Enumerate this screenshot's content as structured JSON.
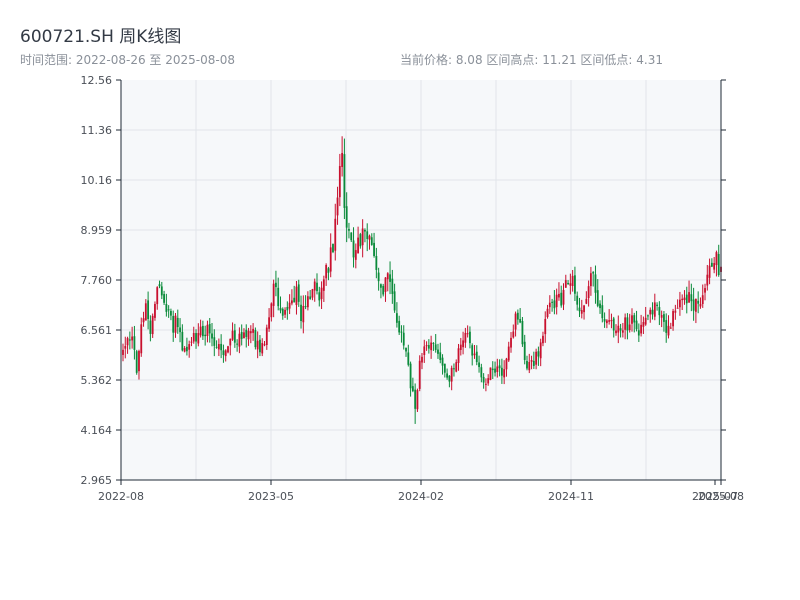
{
  "chart_data": {
    "type": "candlestick",
    "title": "600721.SH 周K线图",
    "subtitle_left": "时间范围: 2022-08-26 至 2025-08-08",
    "subtitle_right": "当前价格: 8.08   区间高点: 11.21   区间低点: 4.31",
    "up_color": "#c8102e",
    "down_color": "#0a8a3a",
    "y_ticks": [
      "2.965",
      "4.164",
      "5.362",
      "6.561",
      "7.760",
      "8.959",
      "10.16",
      "11.36",
      "12.56"
    ],
    "ylim": [
      2.965,
      12.56
    ],
    "x_ticks": [
      "2022-08",
      "2023-05",
      "2024-02",
      "2024-11",
      "2025-07",
      "2025-08"
    ],
    "grid": true,
    "anchors": [
      [
        0,
        6.2
      ],
      [
        4,
        6.25
      ],
      [
        6,
        5.6
      ],
      [
        8,
        6.8
      ],
      [
        10,
        7.0
      ],
      [
        12,
        6.6
      ],
      [
        14,
        7.4
      ],
      [
        16,
        7.6
      ],
      [
        18,
        7.1
      ],
      [
        20,
        6.9
      ],
      [
        22,
        6.7
      ],
      [
        24,
        6.8
      ],
      [
        26,
        6.2
      ],
      [
        28,
        6.1
      ],
      [
        30,
        6.3
      ],
      [
        32,
        6.4
      ],
      [
        34,
        6.5
      ],
      [
        36,
        6.6
      ],
      [
        38,
        6.4
      ],
      [
        40,
        6.2
      ],
      [
        42,
        6.1
      ],
      [
        44,
        6.1
      ],
      [
        46,
        6.3
      ],
      [
        48,
        6.5
      ],
      [
        50,
        6.4
      ],
      [
        52,
        6.3
      ],
      [
        54,
        6.4
      ],
      [
        56,
        6.6
      ],
      [
        58,
        6.3
      ],
      [
        60,
        6.2
      ],
      [
        62,
        6.4
      ],
      [
        64,
        6.9
      ],
      [
        66,
        7.6
      ],
      [
        68,
        7.3
      ],
      [
        70,
        7.1
      ],
      [
        72,
        7.0
      ],
      [
        74,
        7.2
      ],
      [
        76,
        7.4
      ],
      [
        78,
        6.8
      ],
      [
        80,
        7.2
      ],
      [
        82,
        7.5
      ],
      [
        84,
        7.6
      ],
      [
        86,
        7.3
      ],
      [
        88,
        7.7
      ],
      [
        90,
        8.1
      ],
      [
        92,
        8.5
      ],
      [
        94,
        9.8
      ],
      [
        95,
        10.2
      ],
      [
        96,
        10.5
      ],
      [
        97,
        9.6
      ],
      [
        98,
        9.0
      ],
      [
        100,
        8.6
      ],
      [
        102,
        8.4
      ],
      [
        104,
        8.7
      ],
      [
        106,
        9.0
      ],
      [
        108,
        8.7
      ],
      [
        110,
        8.1
      ],
      [
        112,
        7.8
      ],
      [
        114,
        7.6
      ],
      [
        116,
        7.9
      ],
      [
        118,
        7.3
      ],
      [
        120,
        6.8
      ],
      [
        122,
        6.5
      ],
      [
        124,
        5.9
      ],
      [
        126,
        5.3
      ],
      [
        128,
        4.8
      ],
      [
        130,
        5.7
      ],
      [
        132,
        6.0
      ],
      [
        134,
        6.3
      ],
      [
        136,
        6.4
      ],
      [
        138,
        6.0
      ],
      [
        140,
        5.6
      ],
      [
        142,
        5.3
      ],
      [
        144,
        5.6
      ],
      [
        146,
        5.9
      ],
      [
        148,
        6.1
      ],
      [
        150,
        6.4
      ],
      [
        152,
        6.3
      ],
      [
        154,
        5.9
      ],
      [
        156,
        5.6
      ],
      [
        158,
        5.3
      ],
      [
        160,
        5.5
      ],
      [
        162,
        5.6
      ],
      [
        164,
        5.7
      ],
      [
        166,
        5.4
      ],
      [
        168,
        5.8
      ],
      [
        170,
        6.2
      ],
      [
        172,
        6.8
      ],
      [
        174,
        6.6
      ],
      [
        176,
        5.9
      ],
      [
        178,
        5.7
      ],
      [
        180,
        5.8
      ],
      [
        182,
        6.0
      ],
      [
        184,
        6.4
      ],
      [
        186,
        7.0
      ],
      [
        188,
        7.3
      ],
      [
        189,
        6.9
      ],
      [
        190,
        7.6
      ],
      [
        192,
        7.2
      ],
      [
        194,
        7.6
      ],
      [
        196,
        7.9
      ],
      [
        198,
        7.4
      ],
      [
        200,
        6.9
      ],
      [
        202,
        7.3
      ],
      [
        204,
        7.6
      ],
      [
        206,
        7.8
      ],
      [
        208,
        7.2
      ],
      [
        210,
        6.8
      ],
      [
        212,
        6.6
      ],
      [
        214,
        6.7
      ],
      [
        216,
        6.6
      ],
      [
        218,
        6.5
      ],
      [
        220,
        6.7
      ],
      [
        222,
        6.8
      ],
      [
        224,
        6.9
      ],
      [
        226,
        6.6
      ],
      [
        228,
        6.7
      ],
      [
        230,
        6.8
      ],
      [
        232,
        7.1
      ],
      [
        234,
        7.0
      ],
      [
        236,
        6.8
      ],
      [
        238,
        6.6
      ],
      [
        240,
        6.8
      ],
      [
        242,
        7.0
      ],
      [
        244,
        7.2
      ],
      [
        246,
        7.3
      ],
      [
        248,
        7.5
      ],
      [
        250,
        7.0
      ],
      [
        252,
        7.2
      ],
      [
        254,
        7.5
      ],
      [
        256,
        7.9
      ],
      [
        258,
        8.2
      ],
      [
        260,
        8.3
      ],
      [
        261,
        8.1
      ],
      [
        262,
        8.08
      ]
    ],
    "extremes": [
      [
        96,
        11.21
      ],
      [
        128,
        4.31
      ]
    ]
  }
}
